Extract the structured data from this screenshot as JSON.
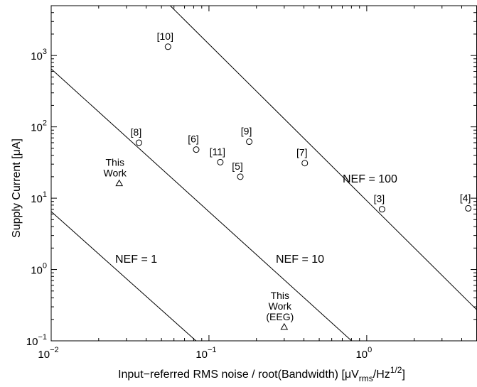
{
  "chart_data": {
    "type": "scatter",
    "xscale": "log",
    "yscale": "log",
    "xlim": [
      0.01,
      5
    ],
    "ylim": [
      0.1,
      5000
    ],
    "xlabel": "Input−referred RMS noise / root(Bandwidth) [μV",
    "xlabel_sub": "rms",
    "xlabel_tail": "/Hz",
    "xlabel_sup": "1/2",
    "xlabel_end": "]",
    "ylabel": "Supply Current [μA]",
    "x_ticks": [
      {
        "value": 0.01,
        "base": "10",
        "exp": "−2"
      },
      {
        "value": 0.1,
        "base": "10",
        "exp": "−1"
      },
      {
        "value": 1,
        "base": "10",
        "exp": "0"
      }
    ],
    "y_ticks": [
      {
        "value": 0.1,
        "base": "10",
        "exp": "−1"
      },
      {
        "value": 1,
        "base": "10",
        "exp": "0"
      },
      {
        "value": 10,
        "base": "10",
        "exp": "1"
      },
      {
        "value": 100,
        "base": "10",
        "exp": "2"
      },
      {
        "value": 1000,
        "base": "10",
        "exp": "3"
      }
    ],
    "grid": false,
    "references": [
      {
        "label": "[10]",
        "x": 0.055,
        "y": 1330
      },
      {
        "label": "[8]",
        "x": 0.036,
        "y": 60
      },
      {
        "label": "[6]",
        "x": 0.083,
        "y": 48
      },
      {
        "label": "[9]",
        "x": 0.18,
        "y": 62
      },
      {
        "label": "[11]",
        "x": 0.118,
        "y": 32
      },
      {
        "label": "[5]",
        "x": 0.158,
        "y": 20
      },
      {
        "label": "[7]",
        "x": 0.405,
        "y": 31
      },
      {
        "label": "[3]",
        "x": 1.25,
        "y": 7
      },
      {
        "label": "[4]",
        "x": 4.4,
        "y": 7.2
      }
    ],
    "this_work": [
      {
        "lines": [
          "This",
          "Work"
        ],
        "x": 0.027,
        "y": 16
      },
      {
        "lines": [
          "This",
          "Work",
          "(EEG)"
        ],
        "x": 0.3,
        "y": 0.155
      }
    ],
    "nef_lines": [
      {
        "label": "NEF = 1",
        "x": [
          0.01,
          0.0828
        ],
        "y": [
          6.5,
          0.1
        ]
      },
      {
        "label": "NEF = 10",
        "x": [
          0.01,
          0.802
        ],
        "y": [
          650,
          0.1
        ]
      },
      {
        "label": "NEF = 100",
        "x": [
          0.0568,
          5
        ],
        "y": [
          5000,
          0.27
        ]
      }
    ]
  }
}
